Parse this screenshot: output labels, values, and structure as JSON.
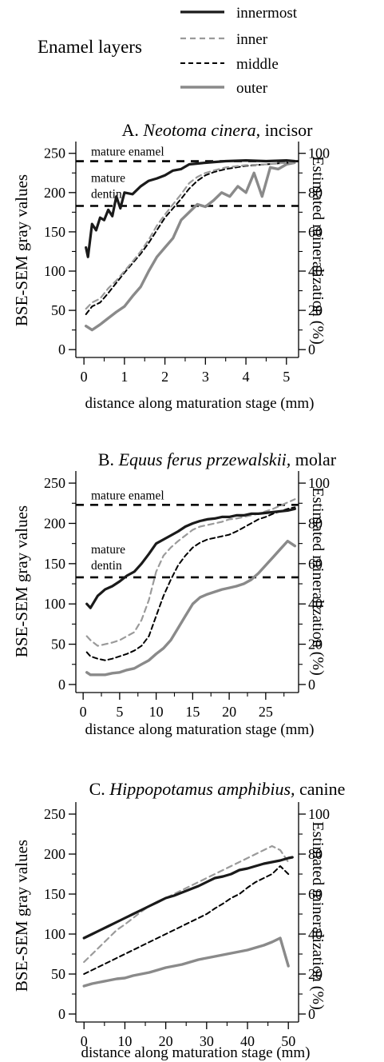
{
  "legend": {
    "title": "Enamel layers",
    "entries": [
      "innermost",
      "inner",
      "middle",
      "outer"
    ]
  },
  "styles": {
    "innermost": {
      "color": "#1a1a1a",
      "dash": "none",
      "width": 3.2
    },
    "inner": {
      "color": "#9a9a9a",
      "dash": "7 5",
      "width": 2.2
    },
    "middle": {
      "color": "#000000",
      "dash": "6 4",
      "width": 2.0
    },
    "outer": {
      "color": "#8a8a8a",
      "dash": "none",
      "width": 3.4
    },
    "reference": {
      "color": "#000000",
      "dash": "10 8",
      "width": 2.6
    }
  },
  "panels": [
    {
      "title_prefix": "A. ",
      "title_species": "Neotoma cinera",
      "title_suffix": ", incisor",
      "ylabel_left": "BSE-SEM gray values",
      "ylabel_right": "Estimated mineralization (%)",
      "xlabel": "distance along maturation stage (mm)",
      "xticks": [
        "0",
        "1",
        "2",
        "3",
        "4",
        "5"
      ],
      "yticks_left": [
        "0",
        "50",
        "100",
        "150",
        "200",
        "250"
      ],
      "yticks_right": [
        "0",
        "20",
        "40",
        "60",
        "80",
        "100"
      ],
      "ref_lines": [
        {
          "label": [
            "mature enamel"
          ],
          "value": 240
        },
        {
          "label": [
            "mature",
            "dentin"
          ],
          "value": 183
        }
      ]
    },
    {
      "title_prefix": "B. ",
      "title_species": "Equus ferus przewalskii,",
      "title_suffix": " molar",
      "ylabel_left": "BSE-SEM gray values",
      "ylabel_right": "Estimated mineralization (%)",
      "xlabel": "distance along maturation stage (mm)",
      "xticks": [
        "0",
        "5",
        "10",
        "15",
        "20",
        "25"
      ],
      "yticks_left": [
        "0",
        "50",
        "100",
        "150",
        "200",
        "250"
      ],
      "yticks_right": [
        "0",
        "20",
        "40",
        "60",
        "80",
        "100"
      ],
      "ref_lines": [
        {
          "label": [
            "mature enamel"
          ],
          "value": 223
        },
        {
          "label": [
            "mature",
            "dentin"
          ],
          "value": 133
        }
      ]
    },
    {
      "title_prefix": "C. ",
      "title_species": "Hippopotamus amphibius,",
      "title_suffix": " canine",
      "ylabel_left": "BSE-SEM gray values",
      "ylabel_right": "Estimated mineralization (%)",
      "xlabel": "distance along maturation stage (mm)",
      "xticks": [
        "0",
        "10",
        "20",
        "30",
        "40",
        "50"
      ],
      "yticks_left": [
        "0",
        "50",
        "100",
        "150",
        "200",
        "250"
      ],
      "yticks_right": [
        "0",
        "20",
        "40",
        "60",
        "80",
        "100"
      ],
      "ref_lines": []
    }
  ],
  "chart_data": [
    {
      "type": "line",
      "title": "A. Neotoma cinera, incisor",
      "xlabel": "distance along maturation stage (mm)",
      "ylabel": "BSE-SEM gray values",
      "y2label": "Estimated mineralization (%)",
      "xlim": [
        -0.2,
        5.3
      ],
      "ylim": [
        -10,
        265
      ],
      "y2lim": [
        -4,
        106
      ],
      "hlines": [
        240,
        183
      ],
      "grid": false,
      "legend": "top",
      "series": [
        {
          "name": "innermost",
          "x": [
            0.05,
            0.1,
            0.2,
            0.3,
            0.4,
            0.5,
            0.6,
            0.7,
            0.8,
            0.9,
            1.0,
            1.2,
            1.4,
            1.6,
            1.8,
            2.0,
            2.2,
            2.4,
            2.6,
            2.8,
            3.0,
            3.5,
            4.0,
            4.5,
            5.0,
            5.2
          ],
          "y": [
            130,
            118,
            160,
            152,
            168,
            165,
            178,
            170,
            195,
            180,
            200,
            198,
            208,
            215,
            218,
            222,
            228,
            230,
            236,
            237,
            238,
            240,
            241,
            240,
            241,
            240
          ]
        },
        {
          "name": "inner",
          "x": [
            0.05,
            0.2,
            0.4,
            0.6,
            0.8,
            1.0,
            1.2,
            1.4,
            1.6,
            1.8,
            2.0,
            2.2,
            2.4,
            2.6,
            2.8,
            3.0,
            3.2,
            3.5,
            4.0,
            4.5,
            5.0,
            5.2
          ],
          "y": [
            52,
            60,
            65,
            78,
            88,
            100,
            112,
            125,
            140,
            158,
            172,
            185,
            198,
            212,
            220,
            225,
            228,
            232,
            235,
            236,
            238,
            238
          ]
        },
        {
          "name": "middle",
          "x": [
            0.05,
            0.2,
            0.4,
            0.6,
            0.8,
            1.0,
            1.2,
            1.4,
            1.6,
            1.8,
            2.0,
            2.2,
            2.4,
            2.6,
            2.8,
            3.0,
            3.2,
            3.5,
            4.0,
            4.5,
            5.0,
            5.2
          ],
          "y": [
            45,
            55,
            60,
            72,
            85,
            98,
            110,
            122,
            136,
            152,
            168,
            180,
            192,
            205,
            215,
            222,
            226,
            230,
            234,
            236,
            238,
            238
          ]
        },
        {
          "name": "outer",
          "x": [
            0.05,
            0.2,
            0.4,
            0.6,
            0.8,
            1.0,
            1.2,
            1.4,
            1.6,
            1.8,
            2.0,
            2.2,
            2.4,
            2.6,
            2.8,
            3.0,
            3.2,
            3.4,
            3.6,
            3.8,
            4.0,
            4.2,
            4.4,
            4.6,
            4.8,
            5.0,
            5.2
          ],
          "y": [
            30,
            25,
            32,
            40,
            48,
            55,
            68,
            80,
            100,
            118,
            130,
            142,
            165,
            175,
            185,
            182,
            190,
            200,
            195,
            208,
            200,
            225,
            195,
            232,
            230,
            236,
            238
          ]
        }
      ]
    },
    {
      "type": "line",
      "title": "B. Equus ferus przewalskii, molar",
      "xlabel": "distance along maturation stage (mm)",
      "ylabel": "BSE-SEM gray values",
      "y2label": "Estimated mineralization (%)",
      "xlim": [
        -1,
        29.5
      ],
      "ylim": [
        -10,
        265
      ],
      "y2lim": [
        -4,
        106
      ],
      "hlines": [
        223,
        133
      ],
      "grid": false,
      "legend": "top",
      "series": [
        {
          "name": "innermost",
          "x": [
            0.5,
            1,
            2,
            3,
            4,
            5,
            6,
            7,
            8,
            9,
            10,
            11,
            12,
            13,
            14,
            15,
            16,
            17,
            18,
            19,
            20,
            21,
            22,
            23,
            24,
            25,
            26,
            27,
            28,
            29
          ],
          "y": [
            100,
            95,
            110,
            118,
            122,
            128,
            135,
            140,
            150,
            162,
            175,
            180,
            185,
            190,
            196,
            200,
            203,
            205,
            206,
            208,
            208,
            210,
            210,
            212,
            212,
            213,
            214,
            215,
            216,
            218
          ]
        },
        {
          "name": "inner",
          "x": [
            0.5,
            1,
            2,
            3,
            4,
            5,
            6,
            7,
            8,
            9,
            10,
            11,
            12,
            13,
            14,
            15,
            16,
            17,
            18,
            19,
            20,
            21,
            22,
            23,
            24,
            25,
            26,
            27,
            28,
            29
          ],
          "y": [
            60,
            55,
            48,
            50,
            52,
            55,
            60,
            65,
            80,
            105,
            140,
            160,
            170,
            178,
            185,
            192,
            196,
            198,
            200,
            202,
            205,
            206,
            208,
            210,
            212,
            215,
            218,
            222,
            226,
            230
          ]
        },
        {
          "name": "middle",
          "x": [
            0.5,
            1,
            2,
            3,
            4,
            5,
            6,
            7,
            8,
            9,
            10,
            11,
            12,
            13,
            14,
            15,
            16,
            17,
            18,
            19,
            20,
            21,
            22,
            23,
            24,
            25,
            26,
            27,
            28,
            29
          ],
          "y": [
            40,
            35,
            32,
            30,
            32,
            35,
            38,
            42,
            48,
            60,
            85,
            110,
            130,
            148,
            160,
            170,
            176,
            180,
            182,
            184,
            186,
            190,
            195,
            200,
            205,
            208,
            212,
            215,
            218,
            220
          ]
        },
        {
          "name": "outer",
          "x": [
            0.5,
            1,
            2,
            3,
            4,
            5,
            6,
            7,
            8,
            9,
            10,
            11,
            12,
            13,
            14,
            15,
            16,
            17,
            18,
            19,
            20,
            21,
            22,
            23,
            24,
            25,
            26,
            27,
            28,
            29
          ],
          "y": [
            15,
            12,
            12,
            12,
            14,
            15,
            18,
            20,
            25,
            30,
            38,
            45,
            55,
            70,
            85,
            100,
            108,
            112,
            115,
            118,
            120,
            122,
            125,
            130,
            138,
            148,
            158,
            168,
            178,
            172
          ]
        }
      ]
    },
    {
      "type": "line",
      "title": "C. Hippopotamus amphibius, canine",
      "xlabel": "distance along maturation stage (mm)",
      "ylabel": "BSE-SEM gray values",
      "y2label": "Estimated mineralization (%)",
      "xlim": [
        -2,
        52.5
      ],
      "ylim": [
        -10,
        265
      ],
      "y2lim": [
        -4,
        106
      ],
      "hlines": [],
      "grid": false,
      "legend": "top",
      "series": [
        {
          "name": "innermost",
          "x": [
            0,
            2,
            4,
            6,
            8,
            10,
            12,
            14,
            16,
            18,
            20,
            22,
            24,
            26,
            28,
            30,
            32,
            34,
            36,
            38,
            40,
            42,
            44,
            46,
            48,
            50,
            51
          ],
          "y": [
            95,
            100,
            105,
            110,
            115,
            120,
            125,
            130,
            135,
            140,
            145,
            148,
            152,
            156,
            160,
            165,
            170,
            172,
            175,
            180,
            182,
            185,
            188,
            190,
            192,
            195,
            196
          ]
        },
        {
          "name": "inner",
          "x": [
            0,
            2,
            4,
            6,
            8,
            10,
            12,
            14,
            16,
            18,
            20,
            22,
            24,
            26,
            28,
            30,
            32,
            34,
            36,
            38,
            40,
            42,
            44,
            46,
            48,
            50
          ],
          "y": [
            65,
            75,
            85,
            95,
            105,
            112,
            120,
            128,
            135,
            140,
            145,
            150,
            155,
            160,
            165,
            170,
            175,
            180,
            185,
            190,
            195,
            200,
            205,
            210,
            205,
            190
          ]
        },
        {
          "name": "middle",
          "x": [
            0,
            2,
            4,
            6,
            8,
            10,
            12,
            14,
            16,
            18,
            20,
            22,
            24,
            26,
            28,
            30,
            32,
            34,
            36,
            38,
            40,
            42,
            44,
            46,
            48,
            50
          ],
          "y": [
            50,
            55,
            60,
            65,
            70,
            75,
            80,
            85,
            90,
            95,
            100,
            105,
            110,
            115,
            120,
            125,
            132,
            138,
            145,
            150,
            158,
            165,
            170,
            175,
            185,
            175
          ]
        },
        {
          "name": "outer",
          "x": [
            0,
            2,
            4,
            6,
            8,
            10,
            12,
            14,
            16,
            18,
            20,
            22,
            24,
            26,
            28,
            30,
            32,
            34,
            36,
            38,
            40,
            42,
            44,
            46,
            48,
            50
          ],
          "y": [
            35,
            38,
            40,
            42,
            44,
            45,
            48,
            50,
            52,
            55,
            58,
            60,
            62,
            65,
            68,
            70,
            72,
            74,
            76,
            78,
            80,
            83,
            86,
            90,
            95,
            60
          ]
        }
      ]
    }
  ]
}
